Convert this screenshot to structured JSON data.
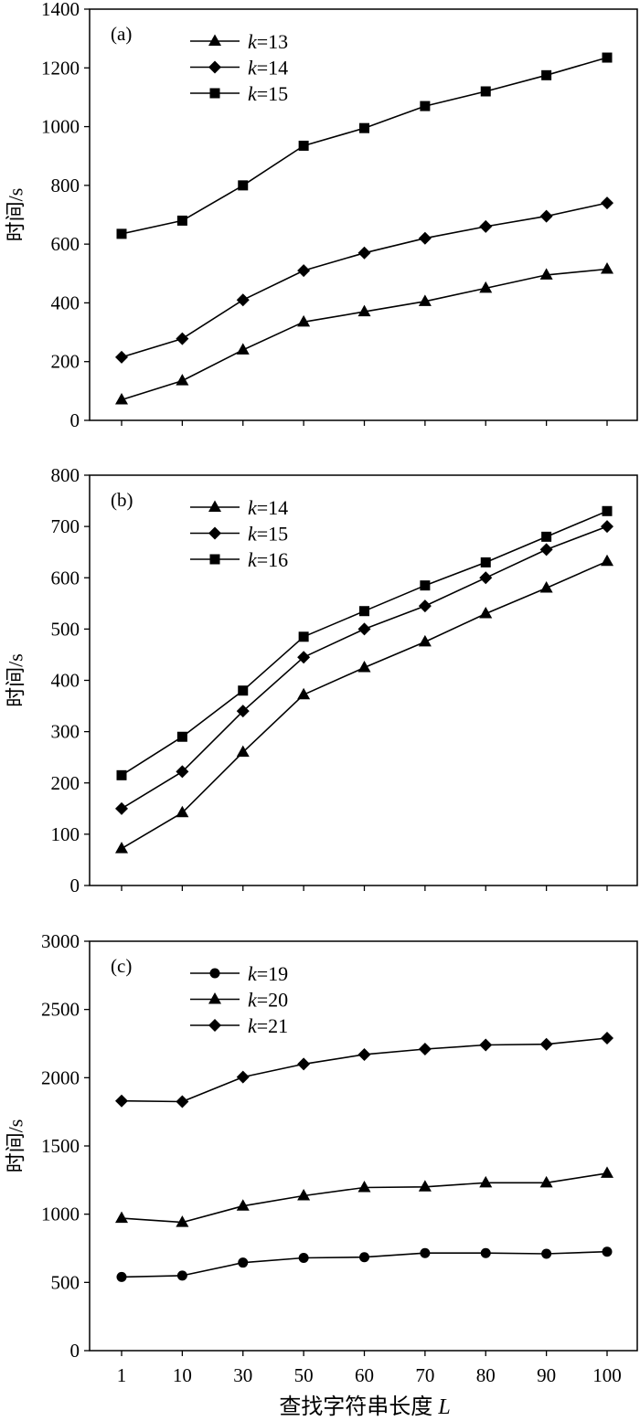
{
  "chart_data": [
    {
      "type": "line",
      "panel_label": "(a)",
      "categories": [
        1,
        10,
        30,
        50,
        60,
        70,
        80,
        90,
        100
      ],
      "ylabel": "时间/s",
      "ylim": [
        0,
        1400
      ],
      "yticks": [
        0,
        200,
        400,
        600,
        800,
        1000,
        1200,
        1400
      ],
      "grid": false,
      "legend_position": "top-left",
      "series": [
        {
          "name": "k=13",
          "marker": "triangle",
          "values": [
            70,
            135,
            240,
            335,
            370,
            405,
            450,
            495,
            515
          ]
        },
        {
          "name": "k=14",
          "marker": "diamond",
          "values": [
            215,
            278,
            410,
            510,
            570,
            620,
            660,
            695,
            740
          ]
        },
        {
          "name": "k=15",
          "marker": "square",
          "values": [
            635,
            680,
            800,
            935,
            995,
            1070,
            1120,
            1175,
            1235
          ]
        }
      ]
    },
    {
      "type": "line",
      "panel_label": "(b)",
      "categories": [
        1,
        10,
        30,
        50,
        60,
        70,
        80,
        90,
        100
      ],
      "ylabel": "时间/s",
      "ylim": [
        0,
        800
      ],
      "yticks": [
        0,
        100,
        200,
        300,
        400,
        500,
        600,
        700,
        800
      ],
      "grid": false,
      "legend_position": "top-left",
      "series": [
        {
          "name": "k=14",
          "marker": "triangle",
          "values": [
            72,
            142,
            260,
            372,
            425,
            475,
            530,
            580,
            632
          ]
        },
        {
          "name": "k=15",
          "marker": "diamond",
          "values": [
            150,
            222,
            340,
            445,
            500,
            545,
            600,
            655,
            700
          ]
        },
        {
          "name": "k=16",
          "marker": "square",
          "values": [
            215,
            290,
            380,
            485,
            535,
            585,
            630,
            680,
            730
          ]
        }
      ]
    },
    {
      "type": "line",
      "panel_label": "(c)",
      "categories": [
        1,
        10,
        30,
        50,
        60,
        70,
        80,
        90,
        100
      ],
      "xlabel": "查找字符串长度 L",
      "ylabel": "时间/s",
      "ylim": [
        0,
        3000
      ],
      "yticks": [
        0,
        500,
        1000,
        1500,
        2000,
        2500,
        3000
      ],
      "grid": false,
      "legend_position": "top-left",
      "series": [
        {
          "name": "k=19",
          "marker": "circle",
          "values": [
            540,
            550,
            645,
            680,
            685,
            715,
            715,
            710,
            725
          ]
        },
        {
          "name": "k=20",
          "marker": "triangle",
          "values": [
            970,
            940,
            1060,
            1135,
            1195,
            1200,
            1230,
            1230,
            1300
          ]
        },
        {
          "name": "k=21",
          "marker": "diamond",
          "values": [
            1830,
            1825,
            2005,
            2100,
            2170,
            2210,
            2240,
            2245,
            2290
          ]
        }
      ]
    }
  ],
  "colors": {
    "line": "#000000",
    "marker": "#000000",
    "background": "#ffffff"
  }
}
